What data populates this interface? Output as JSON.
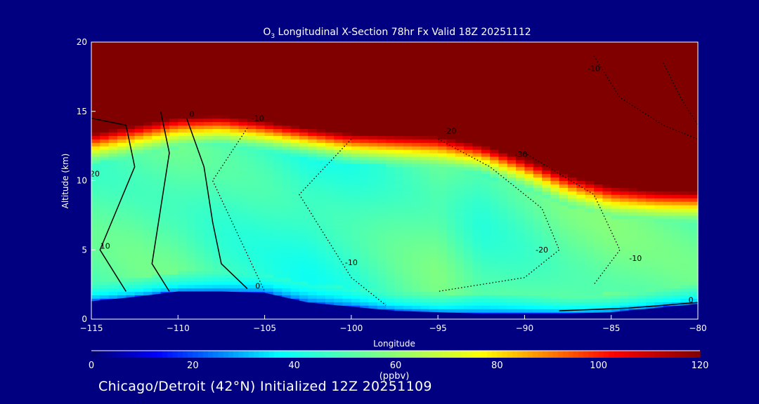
{
  "chart_data": {
    "type": "heatmap",
    "title_prefix": "O",
    "title_sub": "3",
    "title_rest": " Longitudinal X-Section 78hr  Fx Valid 18Z 20251112",
    "xlabel": "Longitude",
    "ylabel": "Altitude (km)",
    "xlim": [
      -115,
      -80
    ],
    "ylim": [
      0,
      20
    ],
    "xticks": [
      -115,
      -110,
      -105,
      -100,
      -95,
      -90,
      -85,
      -80
    ],
    "xtick_labels": [
      "−115",
      "−110",
      "−105",
      "−100",
      "−95",
      "−90",
      "−85",
      "−80"
    ],
    "yticks": [
      0,
      5,
      10,
      15,
      20
    ],
    "ytick_labels": [
      "0",
      "5",
      "10",
      "15",
      "20"
    ],
    "colorbar": {
      "label": "(ppbv)",
      "range": [
        0,
        120
      ],
      "ticks": [
        "0",
        "20",
        "40",
        "60",
        "80",
        "100",
        "120"
      ],
      "stops": [
        {
          "v": 0,
          "c": "#000070"
        },
        {
          "v": 13,
          "c": "#0000ff"
        },
        {
          "v": 37,
          "c": "#00ffff"
        },
        {
          "v": 58,
          "c": "#80ff80"
        },
        {
          "v": 77,
          "c": "#ffff00"
        },
        {
          "v": 90,
          "c": "#ff8000"
        },
        {
          "v": 103,
          "c": "#ff0000"
        },
        {
          "v": 120,
          "c": "#800000"
        }
      ]
    },
    "field": {
      "longitudes": [
        -115,
        -112.5,
        -110,
        -107.5,
        -105,
        -102.5,
        -100,
        -97.5,
        -95,
        -92.5,
        -90,
        -87.5,
        -85,
        -82.5,
        -80
      ],
      "tropopause_km": [
        12.8,
        13.4,
        14.0,
        14.1,
        13.7,
        13.2,
        12.8,
        12.7,
        12.6,
        12.0,
        11.0,
        9.8,
        9.0,
        8.7,
        8.6
      ],
      "terrain_km": [
        1.3,
        1.6,
        2.0,
        2.0,
        1.9,
        1.2,
        0.9,
        0.6,
        0.5,
        0.4,
        0.4,
        0.4,
        0.5,
        0.8,
        1.1
      ],
      "mid_troposphere_ppbv": [
        50,
        52,
        52,
        48,
        46,
        43,
        45,
        50,
        54,
        47,
        50,
        54,
        55,
        53,
        52
      ]
    },
    "contour_labels": [
      {
        "text": "0",
        "lon": -109.2,
        "alt": 14.6
      },
      {
        "text": "-10",
        "lon": -105.4,
        "alt": 14.3
      },
      {
        "text": "-20",
        "lon": -94.3,
        "alt": 13.4
      },
      {
        "text": "-30",
        "lon": -90.2,
        "alt": 11.7
      },
      {
        "text": "-10",
        "lon": -86.0,
        "alt": 17.9
      },
      {
        "text": "20",
        "lon": -114.8,
        "alt": 10.3
      },
      {
        "text": "10",
        "lon": -114.2,
        "alt": 5.1
      },
      {
        "text": "-10",
        "lon": -100.0,
        "alt": 3.9
      },
      {
        "text": "-20",
        "lon": -89.0,
        "alt": 4.8
      },
      {
        "text": "-10",
        "lon": -83.6,
        "alt": 4.2
      },
      {
        "text": "0",
        "lon": -105.4,
        "alt": 2.2
      },
      {
        "text": "0",
        "lon": -80.4,
        "alt": 1.2
      }
    ]
  },
  "footer": "Chicago/Detroit (42°N) Initialized 12Z 20251109"
}
